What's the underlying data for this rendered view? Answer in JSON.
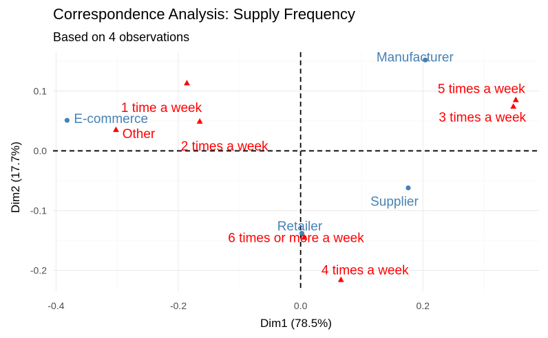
{
  "chart_data": {
    "type": "scatter",
    "title": "Correspondence Analysis: Supply Frequency",
    "subtitle": "Based on 4 observations",
    "xlabel": "Dim1 (78.5%)",
    "ylabel": "Dim2 (17.7%)",
    "xlim": [
      -0.405,
      0.39
    ],
    "ylim": [
      -0.235,
      0.165
    ],
    "x_ticks": [
      -0.4,
      -0.2,
      0.0,
      0.2
    ],
    "x_tick_labels": [
      "-0.4",
      "-0.2",
      "0.0",
      "0.2"
    ],
    "y_ticks": [
      -0.2,
      -0.1,
      0.0,
      0.1
    ],
    "y_tick_labels": [
      "-0.2",
      "-0.1",
      "0.0",
      "0.1"
    ],
    "grid": true,
    "reference_lines": {
      "x": 0.0,
      "y": 0.0,
      "style": "dashed"
    },
    "series": [
      {
        "color": "#4682b4",
        "marker": "circle",
        "points": [
          {
            "label": "E-commerce",
            "x": -0.382,
            "y": 0.051
          },
          {
            "label": "Manufacturer",
            "x": 0.204,
            "y": 0.152
          },
          {
            "label": "Supplier",
            "x": 0.176,
            "y": -0.062
          },
          {
            "label": "Retailer",
            "x": 0.002,
            "y": -0.138
          }
        ]
      },
      {
        "color": "#ff0000",
        "marker": "triangle",
        "points": [
          {
            "label": "1 time a week",
            "x": -0.186,
            "y": 0.113
          },
          {
            "label": "2 times a week",
            "x": -0.165,
            "y": 0.049
          },
          {
            "label": "Other",
            "x": -0.302,
            "y": 0.035
          },
          {
            "label": "5 times a week",
            "x": 0.352,
            "y": 0.085
          },
          {
            "label": "3 times a week",
            "x": 0.348,
            "y": 0.074
          },
          {
            "label": "6 times or more a week",
            "x": 0.006,
            "y": -0.145
          },
          {
            "label": "4 times a week",
            "x": 0.066,
            "y": -0.216
          }
        ]
      }
    ]
  }
}
